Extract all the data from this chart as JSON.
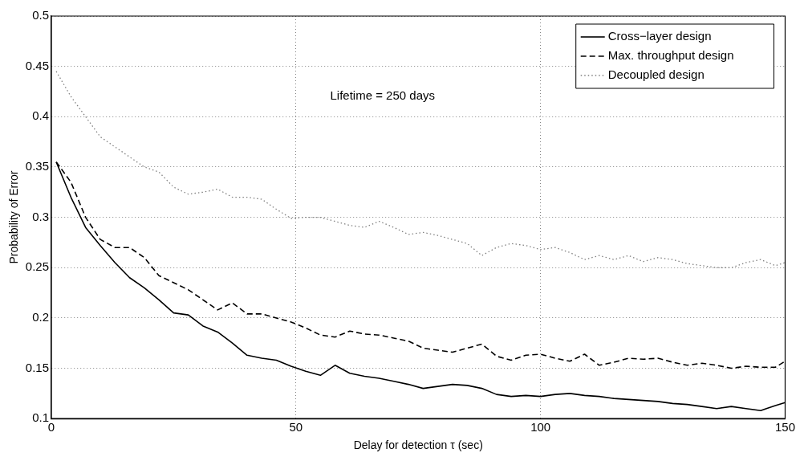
{
  "chart_data": {
    "type": "line",
    "xlabel": "Delay for detection τ (sec)",
    "ylabel": "Probability of Error",
    "x": [
      1,
      4,
      7,
      10,
      13,
      16,
      19,
      22,
      25,
      28,
      31,
      34,
      37,
      40,
      43,
      46,
      49,
      52,
      55,
      58,
      61,
      64,
      67,
      70,
      73,
      76,
      79,
      82,
      85,
      88,
      91,
      94,
      97,
      100,
      103,
      106,
      109,
      112,
      115,
      118,
      121,
      124,
      127,
      130,
      133,
      136,
      139,
      142,
      145,
      148,
      150
    ],
    "series": [
      {
        "name": "Cross−layer design",
        "color": "#000000",
        "line_style": "solid",
        "values": [
          0.355,
          0.32,
          0.29,
          0.272,
          0.255,
          0.24,
          0.23,
          0.218,
          0.205,
          0.203,
          0.192,
          0.186,
          0.175,
          0.163,
          0.16,
          0.158,
          0.152,
          0.147,
          0.143,
          0.153,
          0.145,
          0.142,
          0.14,
          0.137,
          0.134,
          0.13,
          0.132,
          0.134,
          0.133,
          0.13,
          0.124,
          0.122,
          0.123,
          0.122,
          0.124,
          0.125,
          0.123,
          0.122,
          0.12,
          0.119,
          0.118,
          0.117,
          0.115,
          0.114,
          0.112,
          0.11,
          0.112,
          0.11,
          0.108,
          0.113,
          0.116
        ]
      },
      {
        "name": "Max. throughput design",
        "color": "#000000",
        "line_style": "dashed",
        "values": [
          0.355,
          0.335,
          0.3,
          0.278,
          0.27,
          0.27,
          0.26,
          0.242,
          0.235,
          0.228,
          0.218,
          0.208,
          0.215,
          0.204,
          0.204,
          0.2,
          0.196,
          0.19,
          0.183,
          0.181,
          0.187,
          0.184,
          0.183,
          0.18,
          0.177,
          0.17,
          0.168,
          0.166,
          0.17,
          0.174,
          0.162,
          0.158,
          0.163,
          0.164,
          0.16,
          0.157,
          0.164,
          0.153,
          0.156,
          0.16,
          0.159,
          0.16,
          0.156,
          0.153,
          0.155,
          0.153,
          0.15,
          0.152,
          0.151,
          0.151,
          0.157
        ]
      },
      {
        "name": "Decoupled design",
        "color": "#808080",
        "line_style": "dotted",
        "values": [
          0.445,
          0.42,
          0.4,
          0.38,
          0.37,
          0.36,
          0.35,
          0.345,
          0.33,
          0.323,
          0.325,
          0.328,
          0.32,
          0.32,
          0.318,
          0.308,
          0.299,
          0.3,
          0.3,
          0.296,
          0.292,
          0.29,
          0.296,
          0.29,
          0.283,
          0.285,
          0.282,
          0.278,
          0.274,
          0.262,
          0.27,
          0.274,
          0.272,
          0.268,
          0.27,
          0.265,
          0.258,
          0.262,
          0.258,
          0.262,
          0.256,
          0.26,
          0.258,
          0.254,
          0.252,
          0.25,
          0.25,
          0.255,
          0.258,
          0.252,
          0.255
        ]
      }
    ],
    "xlim": [
      0,
      150
    ],
    "xticks": [
      0,
      50,
      100,
      150
    ],
    "ylim": [
      0.1,
      0.5
    ],
    "yticks": [
      0.1,
      0.15,
      0.2,
      0.25,
      0.3,
      0.35,
      0.4,
      0.45,
      0.5
    ],
    "grid": true,
    "legend": "top right",
    "marker": "none",
    "annotations": [
      "Lifetime = 250 days"
    ]
  }
}
